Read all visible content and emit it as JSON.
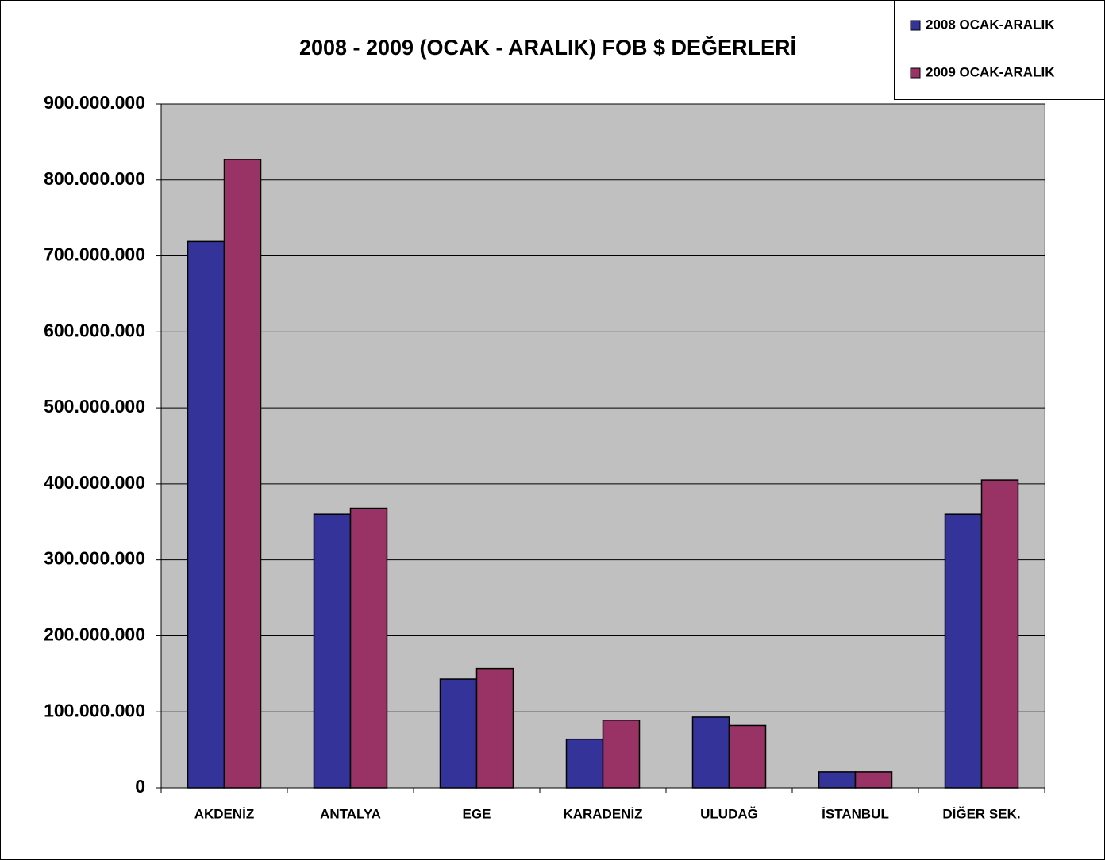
{
  "chart_data": {
    "type": "bar",
    "title": "2008 - 2009 (OCAK - ARALIK) FOB $ DEĞERLERİ",
    "categories": [
      "AKDENİZ",
      "ANTALYA",
      "EGE",
      "KARADENİZ",
      "ULUDAĞ",
      "İSTANBUL",
      "DİĞER SEK."
    ],
    "series": [
      {
        "name": "2008 OCAK-ARALIK",
        "color": "#333399",
        "values": [
          719000000,
          360000000,
          143000000,
          64000000,
          93000000,
          21000000,
          360000000
        ]
      },
      {
        "name": "2009 OCAK-ARALIK",
        "color": "#993366",
        "values": [
          827000000,
          368000000,
          157000000,
          89000000,
          82000000,
          21000000,
          405000000
        ]
      }
    ],
    "ylim": [
      0,
      900000000
    ],
    "yticks": [
      0,
      {
        "value": 100000000,
        "label": "100.000.000"
      },
      {
        "value": 200000000,
        "label": "200.000.000"
      },
      {
        "value": 300000000,
        "label": "300.000.000"
      },
      {
        "value": 400000000,
        "label": "400.000.000"
      },
      {
        "value": 500000000,
        "label": "500.000.000"
      },
      {
        "value": 600000000,
        "label": "600.000.000"
      },
      {
        "value": 700000000,
        "label": "700.000.000"
      },
      {
        "value": 800000000,
        "label": "800.000.000"
      },
      {
        "value": 900000000,
        "label": "900.000.000"
      }
    ],
    "grid": true,
    "plot_background": "#c0c0c0"
  }
}
